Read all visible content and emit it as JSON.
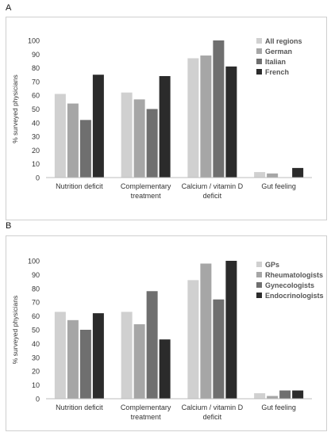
{
  "panels": [
    {
      "letter": "A",
      "chart_data": {
        "type": "bar",
        "ylabel": "% surveyed physicians",
        "ylim": [
          0,
          100
        ],
        "yticks": [
          0,
          10,
          20,
          30,
          40,
          50,
          60,
          70,
          80,
          90,
          100
        ],
        "categories": [
          [
            "Nutrition deficit"
          ],
          [
            "Complementary",
            "treatment"
          ],
          [
            "Calcium / vitamin D",
            "deficit"
          ],
          [
            "Gut feeling"
          ]
        ],
        "legend_position": "top-right",
        "series": [
          {
            "name": "All regions",
            "color": "#d0d0d0",
            "values": [
              61,
              62,
              87,
              4
            ]
          },
          {
            "name": "German",
            "color": "#a6a6a6",
            "values": [
              54,
              57,
              89,
              3
            ]
          },
          {
            "name": "Italian",
            "color": "#6f6f6f",
            "values": [
              42,
              50,
              100,
              0
            ]
          },
          {
            "name": "French",
            "color": "#2b2b2b",
            "values": [
              75,
              74,
              81,
              7
            ]
          }
        ]
      }
    },
    {
      "letter": "B",
      "chart_data": {
        "type": "bar",
        "ylabel": "% surveyed physicians",
        "ylim": [
          0,
          100
        ],
        "yticks": [
          0,
          10,
          20,
          30,
          40,
          50,
          60,
          70,
          80,
          90,
          100
        ],
        "categories": [
          [
            "Nutrition deficit"
          ],
          [
            "Complementary",
            "treatment"
          ],
          [
            "Calcium / vitamin D",
            "deficit"
          ],
          [
            "Gut feeling"
          ]
        ],
        "legend_position": "top-right",
        "series": [
          {
            "name": "GPs",
            "color": "#d0d0d0",
            "values": [
              63,
              63,
              86,
              4
            ]
          },
          {
            "name": "Rheumatologists",
            "color": "#a6a6a6",
            "values": [
              57,
              54,
              98,
              2
            ]
          },
          {
            "name": "Gynecologists",
            "color": "#6f6f6f",
            "values": [
              50,
              78,
              72,
              6
            ]
          },
          {
            "name": "Endocrinologists",
            "color": "#2b2b2b",
            "values": [
              62,
              43,
              100,
              6
            ]
          }
        ]
      }
    }
  ]
}
